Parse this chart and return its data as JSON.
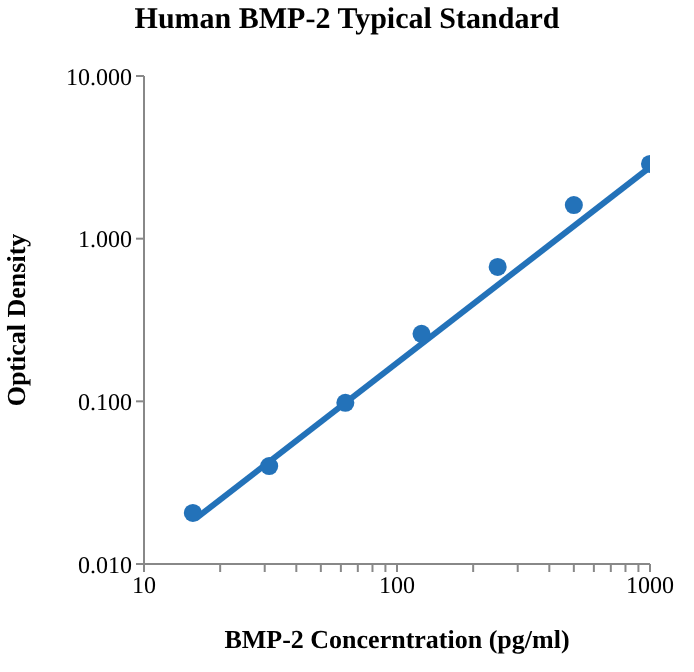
{
  "chart_data": {
    "type": "scatter",
    "title": "Human BMP-2 Typical Standard",
    "xlabel": "BMP-2 Concerntration (pg/ml)",
    "ylabel": "Optical Density",
    "log": "xy",
    "marker": "circle",
    "xlim": [
      10,
      1000
    ],
    "ylim": [
      0.01,
      10
    ],
    "xticks": [
      10,
      {
        "value": 20,
        "label": null
      },
      {
        "value": 30,
        "label": null
      },
      {
        "value": 40,
        "label": null
      },
      {
        "value": 50,
        "label": null
      },
      {
        "value": 60,
        "label": null
      },
      {
        "value": 70,
        "label": null
      },
      {
        "value": 80,
        "label": null
      },
      {
        "value": 90,
        "label": null
      },
      100,
      {
        "value": 200,
        "label": null
      },
      {
        "value": 300,
        "label": null
      },
      {
        "value": 400,
        "label": null
      },
      {
        "value": 500,
        "label": null
      },
      {
        "value": 600,
        "label": null
      },
      {
        "value": 700,
        "label": null
      },
      {
        "value": 800,
        "label": null
      },
      {
        "value": 900,
        "label": null
      },
      1000
    ],
    "yticks": [
      {
        "value": 0.01,
        "label": "0.010"
      },
      {
        "value": 0.1,
        "label": "0.100"
      },
      {
        "value": 1,
        "label": "1.000"
      },
      {
        "value": 10,
        "label": "10.000"
      }
    ],
    "x": [
      15.6,
      31.25,
      62.5,
      125,
      250,
      500,
      1000
    ],
    "series": [
      {
        "color": "#2372b9",
        "values": [
          0.0206,
          0.04,
          0.098,
          0.26,
          0.67,
          1.61,
          2.88
        ]
      },
      {
        "type": "line",
        "color": "#2372b9",
        "marker": "none",
        "line_style": "solid",
        "x": [
          16,
          1000
        ],
        "values": [
          0.019,
          2.75
        ]
      }
    ]
  }
}
